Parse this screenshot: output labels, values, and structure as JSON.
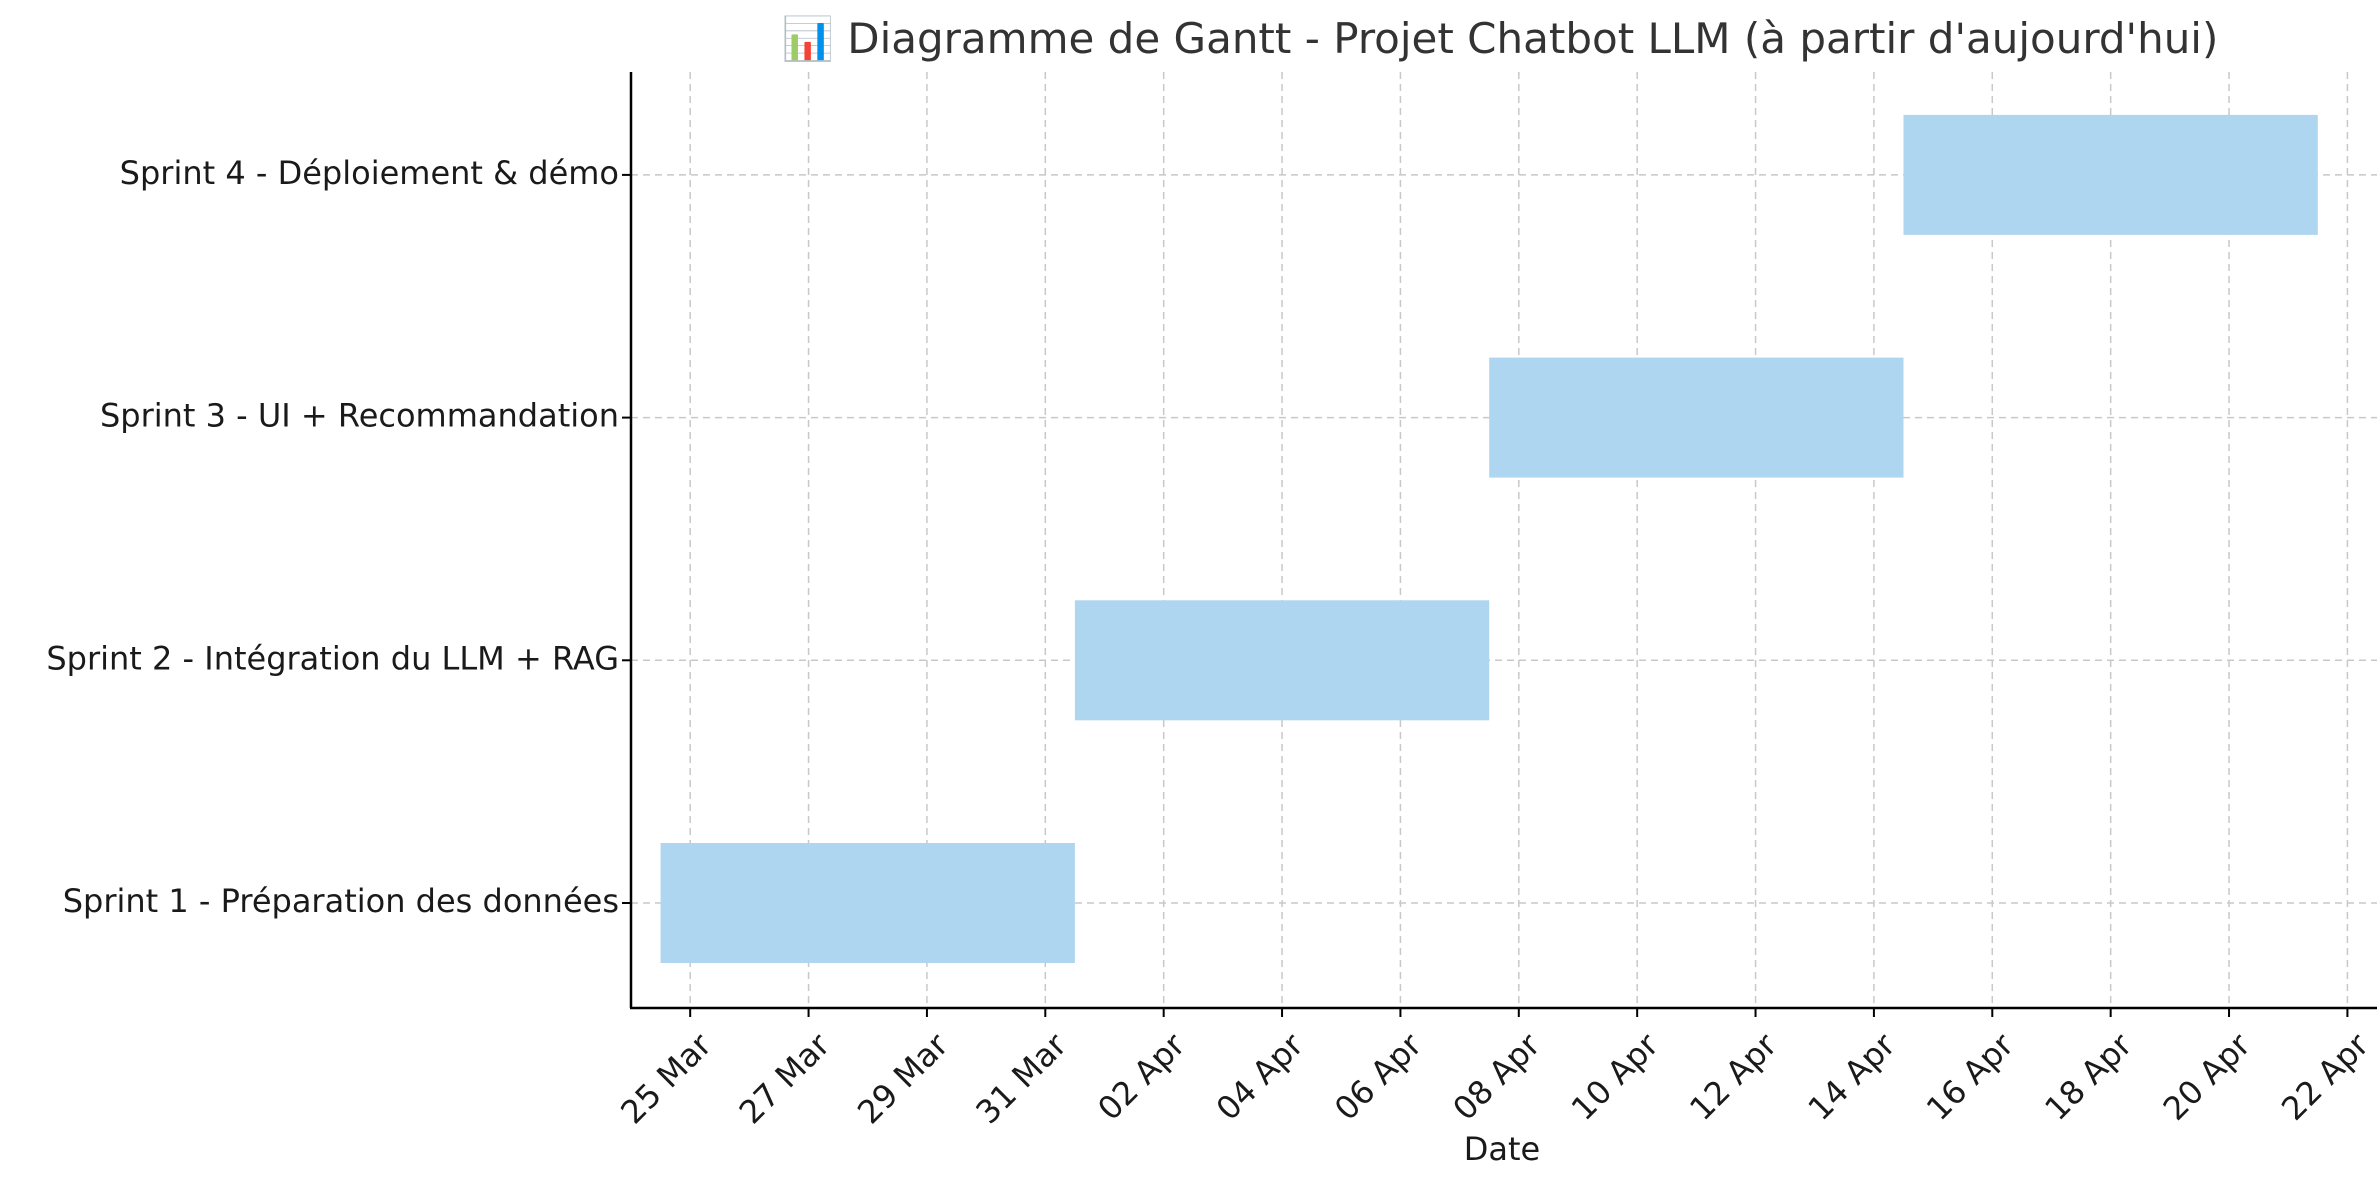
{
  "chart_data": {
    "type": "gantt",
    "title": "📊 Diagramme de Gantt - Projet Chatbot LLM (à partir d'aujourd'hui)",
    "xlabel": "Date",
    "ylabel": "",
    "x_axis": "date",
    "xlim": [
      "2025-03-24T00:00",
      "2025-04-22T12:00"
    ],
    "x_ticks": [
      {
        "date": "2025-03-25",
        "label": "25 Mar"
      },
      {
        "date": "2025-03-27",
        "label": "27 Mar"
      },
      {
        "date": "2025-03-29",
        "label": "29 Mar"
      },
      {
        "date": "2025-03-31",
        "label": "31 Mar"
      },
      {
        "date": "2025-04-02",
        "label": "02 Apr"
      },
      {
        "date": "2025-04-04",
        "label": "04 Apr"
      },
      {
        "date": "2025-04-06",
        "label": "06 Apr"
      },
      {
        "date": "2025-04-08",
        "label": "08 Apr"
      },
      {
        "date": "2025-04-10",
        "label": "10 Apr"
      },
      {
        "date": "2025-04-12",
        "label": "12 Apr"
      },
      {
        "date": "2025-04-14",
        "label": "14 Apr"
      },
      {
        "date": "2025-04-16",
        "label": "16 Apr"
      },
      {
        "date": "2025-04-18",
        "label": "18 Apr"
      },
      {
        "date": "2025-04-20",
        "label": "20 Apr"
      },
      {
        "date": "2025-04-22",
        "label": "22 Apr"
      }
    ],
    "tasks": [
      {
        "label": "Sprint 1 - Préparation des données",
        "start": "2025-03-24T12:00",
        "end": "2025-03-31T12:00"
      },
      {
        "label": "Sprint 2 - Intégration du LLM + RAG",
        "start": "2025-03-31T12:00",
        "end": "2025-04-07T12:00"
      },
      {
        "label": "Sprint 3 - UI + Recommandation",
        "start": "2025-04-07T12:00",
        "end": "2025-04-14T12:00"
      },
      {
        "label": "Sprint 4 - Déploiement & démo",
        "start": "2025-04-14T12:00",
        "end": "2025-04-21T12:00"
      }
    ],
    "bar_color": "#aed6f1",
    "grid": true,
    "legend": "none"
  }
}
